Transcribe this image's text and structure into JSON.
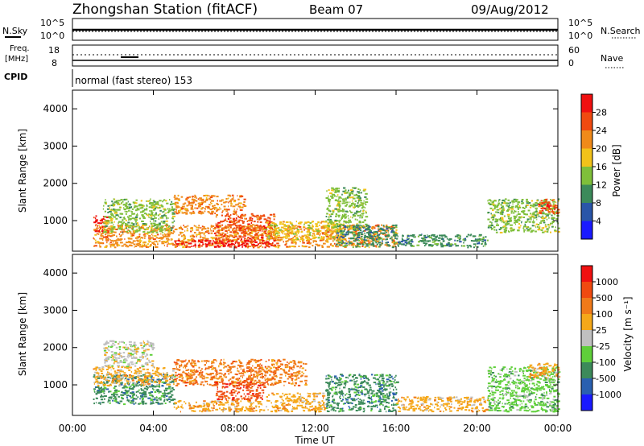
{
  "header": {
    "title": "Zhongshan Station (fitACF)",
    "beam": "Beam 07",
    "date": "09/Aug/2012"
  },
  "top_panels": {
    "nsky_label": "N.Sky",
    "nsearch_label": "N.Search",
    "freq_label_1": "Freq.",
    "freq_label_2": "[MHz]",
    "nave_label": "Nave",
    "cpid_label": "CPID",
    "cpid_text": "normal (fast stereo) 153",
    "noise_ticks": [
      "10^5",
      "10^0"
    ],
    "freq_ticks": [
      "18",
      "8"
    ],
    "nave_ticks": [
      "60",
      "0"
    ]
  },
  "chart_data": [
    {
      "type": "heatmap",
      "name": "power",
      "ylabel": "Slant Range [km]",
      "xlabel": "",
      "ylim": [
        180,
        4500
      ],
      "yticks": [
        "1000",
        "2000",
        "3000",
        "4000"
      ],
      "colorbar_label": "Power [dB]",
      "colorbar_ticks": [
        "4",
        "8",
        "12",
        "16",
        "20",
        "24",
        "28"
      ],
      "colorbar_colors": [
        "#1a1aff",
        "#2a55a8",
        "#3c8a5a",
        "#7fbf3a",
        "#f2c21a",
        "#f08a1a",
        "#f04a10",
        "#f01010"
      ],
      "regions": [
        {
          "t": [
            1.0,
            16.0
          ],
          "r": [
            300,
            900
          ],
          "c": 5
        },
        {
          "t": [
            5.0,
            10.0
          ],
          "r": [
            300,
            500
          ],
          "c": 7
        },
        {
          "t": [
            7.0,
            10.0
          ],
          "r": [
            500,
            1200
          ],
          "c": 6
        },
        {
          "t": [
            1.0,
            1.7
          ],
          "r": [
            700,
            1150
          ],
          "c": 7
        },
        {
          "t": [
            1.5,
            5.0
          ],
          "r": [
            700,
            1600
          ],
          "c": 3
        },
        {
          "t": [
            5.0,
            8.5
          ],
          "r": [
            1200,
            1700
          ],
          "c": 5
        },
        {
          "t": [
            9.5,
            13.5
          ],
          "r": [
            500,
            1000
          ],
          "c": 4
        },
        {
          "t": [
            12.5,
            14.5
          ],
          "r": [
            800,
            1900
          ],
          "c": 3
        },
        {
          "t": [
            13.0,
            16.0
          ],
          "r": [
            300,
            900
          ],
          "c": 2
        },
        {
          "t": [
            16.0,
            20.5
          ],
          "r": [
            300,
            650
          ],
          "c": 2
        },
        {
          "t": [
            20.5,
            24.0
          ],
          "r": [
            700,
            1600
          ],
          "c": 3
        },
        {
          "t": [
            23.0,
            24.0
          ],
          "r": [
            1200,
            1600
          ],
          "c": 6
        }
      ]
    },
    {
      "type": "heatmap",
      "name": "velocity",
      "ylabel": "Slant Range [km]",
      "xlabel": "Time UT",
      "ylim": [
        180,
        4500
      ],
      "yticks": [
        "1000",
        "2000",
        "3000",
        "4000"
      ],
      "xticks": [
        "00:00",
        "04:00",
        "08:00",
        "12:00",
        "16:00",
        "20:00",
        "00:00"
      ],
      "colorbar_label": "Velocity [m s⁻¹]",
      "colorbar_ticks": [
        "1000",
        "500",
        "100",
        "25",
        "-25",
        "-100",
        "-500",
        "-1000"
      ],
      "colorbar_colors": [
        "#1a1aff",
        "#2a60b0",
        "#3c8a5a",
        "#5fcf3a",
        "#c0c0c0",
        "#f5a81a",
        "#f07a1a",
        "#f04a10",
        "#f01010"
      ],
      "regions": [
        {
          "t": [
            1.0,
            5.0
          ],
          "r": [
            500,
            1300
          ],
          "c": 2
        },
        {
          "t": [
            1.5,
            4.0
          ],
          "r": [
            1500,
            2200
          ],
          "c": 4
        },
        {
          "t": [
            1.0,
            5.0
          ],
          "r": [
            1000,
            1500
          ],
          "c": 5
        },
        {
          "t": [
            5.0,
            9.5
          ],
          "r": [
            300,
            600
          ],
          "c": 5
        },
        {
          "t": [
            5.0,
            11.5
          ],
          "r": [
            1000,
            1700
          ],
          "c": 6
        },
        {
          "t": [
            7.0,
            9.5
          ],
          "r": [
            600,
            1100
          ],
          "c": 7
        },
        {
          "t": [
            9.5,
            12.5
          ],
          "r": [
            300,
            800
          ],
          "c": 5
        },
        {
          "t": [
            12.5,
            16.0
          ],
          "r": [
            300,
            1300
          ],
          "c": 2
        },
        {
          "t": [
            16.0,
            20.5
          ],
          "r": [
            300,
            700
          ],
          "c": 5
        },
        {
          "t": [
            20.5,
            24.0
          ],
          "r": [
            300,
            1500
          ],
          "c": 3
        },
        {
          "t": [
            22.5,
            24.0
          ],
          "r": [
            1200,
            1600
          ],
          "c": 5
        }
      ]
    }
  ]
}
